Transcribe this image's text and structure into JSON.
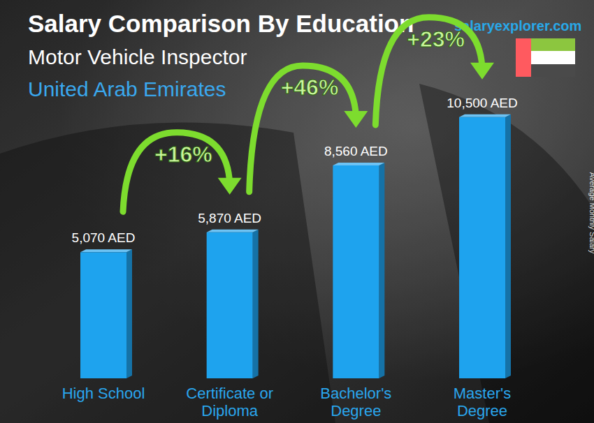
{
  "chart_data": {
    "type": "bar",
    "title": "Salary Comparison By Education",
    "subtitle": "Motor Vehicle Inspector",
    "location": "United Arab Emirates",
    "source": "salaryexplorer.com",
    "y_label": "Average Monthly Salary",
    "categories": [
      "High School",
      "Certificate or Diploma",
      "Bachelor's Degree",
      "Master's Degree"
    ],
    "values": [
      5070,
      5870,
      8560,
      10500
    ],
    "value_labels": [
      "5,070 AED",
      "5,870 AED",
      "8,560 AED",
      "10,500 AED"
    ],
    "annotations": [
      "+16%",
      "+46%",
      "+23%"
    ],
    "color": "#1ea3ee",
    "ylim": [
      0,
      11000
    ],
    "tick_labels": false,
    "data_labels": true,
    "grid": false
  }
}
